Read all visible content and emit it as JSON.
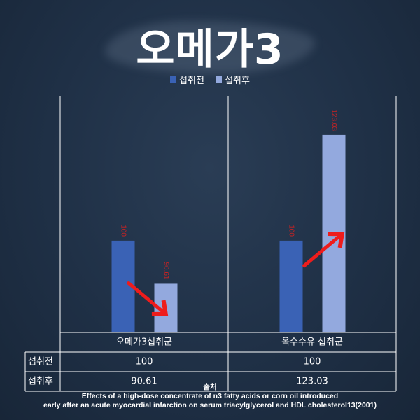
{
  "title": "오메가3",
  "colors": {
    "before": "#3a62b5",
    "after": "#93a9de",
    "label": "#cc2222",
    "arrow": "#ee1c1c",
    "grid": "#ffffff"
  },
  "chart_data": {
    "type": "bar",
    "categories": [
      "오메가3섭취군",
      "옥수수유 섭취군"
    ],
    "series": [
      {
        "name": "섭취전",
        "values": [
          100,
          100
        ],
        "labels": [
          "100",
          "100"
        ]
      },
      {
        "name": "섭취후",
        "values": [
          90.61,
          123.03
        ],
        "labels": [
          "90.61",
          "123.03"
        ]
      }
    ],
    "ylim": [
      80,
      125
    ],
    "legend": "top-center",
    "table": {
      "rows": [
        {
          "label": "섭취전",
          "cells": [
            "100",
            "100"
          ]
        },
        {
          "label": "섭취후",
          "cells": [
            "90.61",
            "123.03"
          ]
        }
      ]
    },
    "annotations": [
      {
        "category": "오메가3섭취군",
        "direction": "down"
      },
      {
        "category": "옥수수유 섭취군",
        "direction": "up"
      }
    ]
  },
  "source": {
    "heading": "출처",
    "line1": "Effects of a high-dose concentrate of n3 fatty acids or corn oil introduced",
    "line2": "early after an acute myocardial infarction on serum triacylglycerol and HDL cholesterol13(2001)"
  }
}
